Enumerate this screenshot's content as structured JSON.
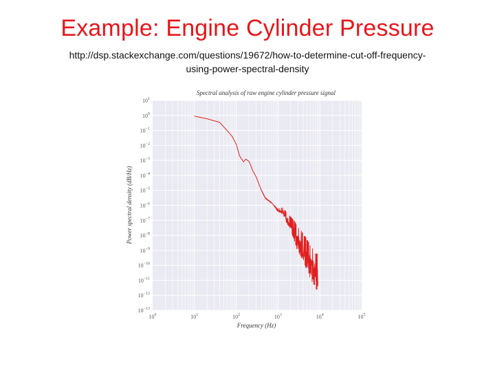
{
  "slide": {
    "title": "Example: Engine Cylinder Pressure",
    "url_line1": "http://dsp.stackexchange.com/questions/19672/how-to-determine-cut-off-frequency-",
    "url_line2": "using-power-spectral-density"
  },
  "chart_data": {
    "type": "line",
    "title": "Spectral analysis of raw engine cylinder pressure signal",
    "xlabel": "Frequency (Hz)",
    "ylabel": "Power spectral density (dB/Hz)",
    "xscale": "log",
    "yscale": "log",
    "xlim": [
      1,
      100000
    ],
    "ylim": [
      1e-13,
      10
    ],
    "x_tick_labels": [
      "10^0",
      "10^1",
      "10^2",
      "10^3",
      "10^4",
      "10^5"
    ],
    "y_tick_labels": [
      "10^1",
      "10^0",
      "10^-1",
      "10^-2",
      "10^-3",
      "10^-4",
      "10^-5",
      "10^-6",
      "10^-7",
      "10^-8",
      "10^-9",
      "10^-10",
      "10^-11",
      "10^-12",
      "10^-13"
    ],
    "grid": true,
    "background": "#eaeaf2",
    "line_color": "#e02020",
    "series": [
      {
        "x": [
          10,
          20,
          40,
          60,
          80,
          100,
          120,
          150,
          170,
          200,
          220,
          250,
          300,
          400,
          500,
          700,
          1000,
          1300,
          1600,
          2000,
          2500,
          3000,
          4000,
          5000,
          6000,
          7000,
          8000,
          9000
        ],
        "y": [
          0.9,
          0.6,
          0.35,
          0.1,
          0.04,
          0.012,
          0.002,
          0.0008,
          0.0012,
          0.0009,
          0.0005,
          0.0002,
          8e-05,
          1e-05,
          3e-06,
          1.5e-06,
          5e-07,
          5e-07,
          2e-07,
          8e-08,
          3e-08,
          1e-08,
          3e-09,
          1e-09,
          4e-10,
          2e-10,
          1e-10,
          8e-11
        ],
        "noise_from_x": 700
      }
    ]
  }
}
